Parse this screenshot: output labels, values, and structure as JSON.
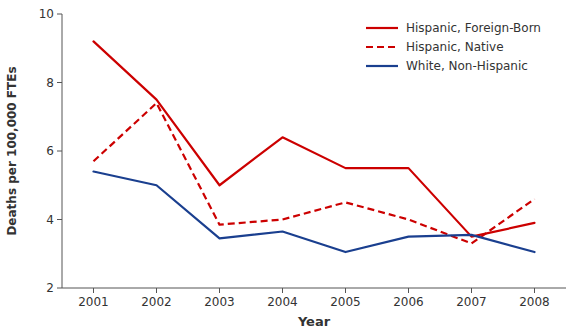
{
  "chart_data": {
    "type": "line",
    "x_label": "Year",
    "y_label": "Deaths per 100,000 FTEs",
    "x": [
      2001,
      2002,
      2003,
      2004,
      2005,
      2006,
      2007,
      2008
    ],
    "series": [
      {
        "name": "Hispanic, Foreign-Born",
        "color": "#cc0000",
        "line_style": "solid",
        "values": [
          9.2,
          7.5,
          5.0,
          6.4,
          5.5,
          5.5,
          3.5,
          3.9
        ]
      },
      {
        "name": "Hispanic, Native",
        "color": "#cc0000",
        "line_style": "dashed",
        "values": [
          5.7,
          7.4,
          3.85,
          4.0,
          4.5,
          4.0,
          3.3,
          4.6
        ]
      },
      {
        "name": "White, Non-Hispanic",
        "color": "#1a3f8f",
        "line_style": "solid",
        "values": [
          5.4,
          5.0,
          3.45,
          3.65,
          3.05,
          3.5,
          3.55,
          3.05
        ]
      }
    ],
    "xlim": [
      2000.5,
      2008.5
    ],
    "xticks": [
      2001,
      2002,
      2003,
      2004,
      2005,
      2006,
      2007,
      2008
    ],
    "ylim": [
      2,
      10
    ],
    "yticks": [
      2,
      4,
      6,
      8,
      10
    ],
    "grid": false,
    "legend": "upper-right"
  }
}
